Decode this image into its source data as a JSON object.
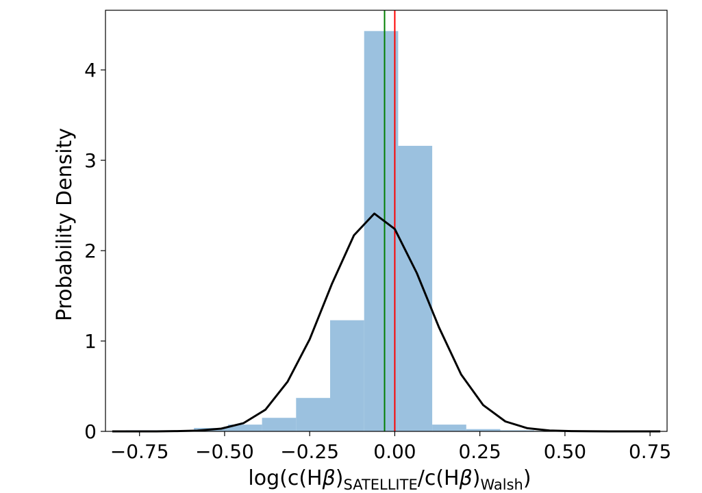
{
  "chart_data": {
    "type": "bar",
    "xlabel": {
      "prefix": "log(c(H",
      "beta": "β",
      "close": ")",
      "sub1": "SATELLITE",
      "slash": "/c(H",
      "sub2": "Walsh",
      "end": ")"
    },
    "ylabel": "Probability Density",
    "xlim": [
      -0.85,
      0.8
    ],
    "ylim": [
      0,
      4.66
    ],
    "x_ticks": [
      -0.75,
      -0.5,
      -0.25,
      0.0,
      0.25,
      0.5,
      0.75
    ],
    "x_tick_labels": [
      "−0.75",
      "−0.50",
      "−0.25",
      "0.00",
      "0.25",
      "0.50",
      "0.75"
    ],
    "y_ticks": [
      0,
      1,
      2,
      3,
      4
    ],
    "y_tick_labels": [
      "0",
      "1",
      "2",
      "3",
      "4"
    ],
    "histogram": {
      "color": "#9bc1df",
      "bin_edges": [
        -0.79,
        -0.69,
        -0.59,
        -0.49,
        -0.39,
        -0.29,
        -0.19,
        -0.09,
        0.01,
        0.11,
        0.21,
        0.31,
        0.41,
        0.51,
        0.61,
        0.71
      ],
      "densities": [
        0.012,
        0.012,
        0.038,
        0.075,
        0.15,
        0.37,
        1.23,
        4.43,
        3.16,
        0.075,
        0.025,
        0.012,
        0.006,
        0.0,
        0.0
      ]
    },
    "density_curve": {
      "color": "#000000",
      "x": [
        -0.83,
        -0.77,
        -0.7,
        -0.64,
        -0.58,
        -0.51,
        -0.445,
        -0.38,
        -0.315,
        -0.25,
        -0.185,
        -0.12,
        -0.06,
        0.0,
        0.065,
        0.13,
        0.195,
        0.26,
        0.325,
        0.39,
        0.455,
        0.52,
        0.585,
        0.65,
        0.715,
        0.78
      ],
      "y": [
        0.0,
        0.0,
        0.0,
        0.003,
        0.008,
        0.03,
        0.09,
        0.24,
        0.55,
        1.02,
        1.63,
        2.17,
        2.41,
        2.24,
        1.75,
        1.15,
        0.63,
        0.29,
        0.11,
        0.035,
        0.01,
        0.003,
        0.001,
        0.0,
        0.0,
        0.0
      ]
    },
    "vertical_lines": [
      {
        "x": -0.03,
        "color": "#007f00"
      },
      {
        "x": 0.0,
        "color": "#ff0000"
      }
    ]
  }
}
